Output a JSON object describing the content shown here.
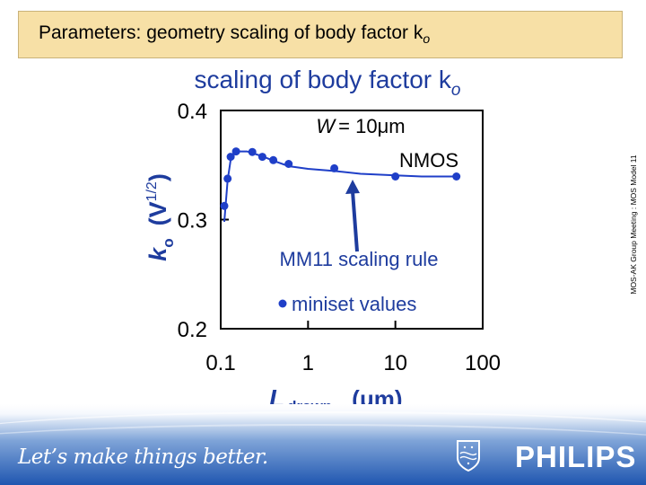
{
  "slide": {
    "header_title": "Parameters: geometry scaling of body factor k",
    "header_title_sub": "o",
    "side_note": "MOS-AK Group Meeting : MOS Model 11"
  },
  "footer": {
    "tagline": "Let’s make things better.",
    "brand": "PHILIPS",
    "brand_color": "#ffffff",
    "footer_color": "#1f56b0"
  },
  "chart_data": {
    "type": "scatter",
    "title": "scaling of body factor k",
    "title_sub": "o",
    "xlabel": "L",
    "xlabel_sub": "drawn",
    "xlabel_unit": "(μm)",
    "ylabel": "k",
    "ylabel_sub": "o",
    "ylabel_unit": "(V",
    "ylabel_unit_sup": "1/2",
    "ylabel_unit_close": ")",
    "x_scale": "log",
    "xlim": [
      0.1,
      100
    ],
    "ylim": [
      0.2,
      0.4
    ],
    "xticks": [
      "0.1",
      "1",
      "10",
      "100"
    ],
    "yticks": [
      "0.2",
      "0.3",
      "0.4"
    ],
    "grid": false,
    "annotation_device_prefix": "W",
    "annotation_device_value": "= 10μm",
    "annotation_device_type": "NMOS",
    "annotation_rule": "MM11 scaling rule",
    "legend_label": "miniset values",
    "legend_placement": "bottom-center",
    "series": [
      {
        "name": "miniset values",
        "marker": "circle",
        "color": "#1f3fc8",
        "x": [
          0.11,
          0.12,
          0.13,
          0.15,
          0.23,
          0.3,
          0.4,
          0.6,
          2,
          10,
          50
        ],
        "y": [
          0.3125,
          0.3375,
          0.3575,
          0.3625,
          0.362,
          0.3575,
          0.3545,
          0.351,
          0.347,
          0.3395,
          0.3395
        ]
      },
      {
        "name": "MM11 scaling rule",
        "marker": "line",
        "color": "#1f3fc8",
        "x": [
          0.11,
          0.12,
          0.13,
          0.15,
          0.2,
          0.3,
          0.4,
          0.6,
          1,
          2,
          4,
          10,
          20,
          50
        ],
        "y": [
          0.298,
          0.336,
          0.355,
          0.3625,
          0.3625,
          0.358,
          0.354,
          0.349,
          0.3465,
          0.3445,
          0.342,
          0.3405,
          0.3395,
          0.3395
        ]
      }
    ]
  }
}
